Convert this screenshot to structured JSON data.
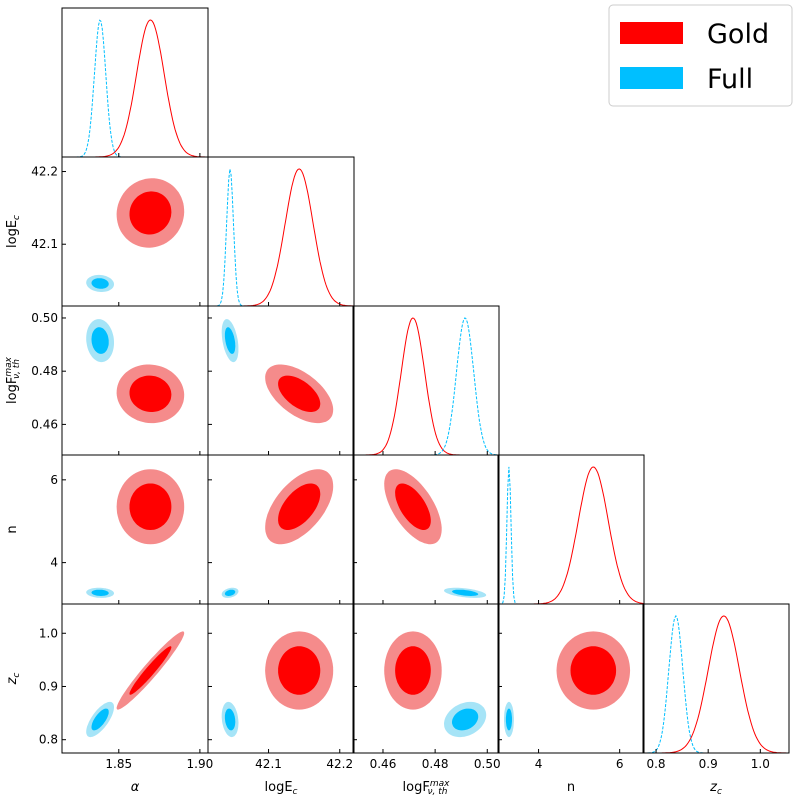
{
  "chart_data": {
    "type": "corner",
    "parameters": [
      {
        "id": "alpha",
        "label": "α",
        "range": [
          1.815,
          1.905
        ],
        "ticks": [
          1.85,
          1.9
        ],
        "tick_labels": [
          "1.85",
          "1.90"
        ]
      },
      {
        "id": "logEc",
        "label": "logE",
        "label_sub": "c",
        "range": [
          42.015,
          42.22
        ],
        "ticks": [
          42.1,
          42.2
        ],
        "tick_labels": [
          "42.1",
          "42.2"
        ]
      },
      {
        "id": "logF",
        "label": "logF",
        "label_sup": "max",
        "label_sub": "ν, th",
        "range": [
          0.4485,
          0.5045
        ],
        "ticks": [
          0.46,
          0.48,
          0.5
        ],
        "tick_labels": [
          "0.46",
          "0.48",
          "0.50"
        ]
      },
      {
        "id": "n",
        "label": "n",
        "range": [
          3.0,
          6.6
        ],
        "ticks": [
          4,
          6
        ],
        "tick_labels": [
          "4",
          "6"
        ]
      },
      {
        "id": "zc",
        "label": "z",
        "label_sub": "c",
        "range": [
          0.775,
          1.055
        ],
        "ticks": [
          0.8,
          0.9,
          1.0
        ],
        "tick_labels": [
          "0.8",
          "0.9",
          "1.0"
        ]
      }
    ],
    "series": [
      {
        "name": "Gold",
        "color_line": "#ff0000",
        "color_inner": "#ff0000",
        "color_outer": "#f58b8b",
        "line_style": "solid",
        "mean": {
          "alpha": 1.8695,
          "logEc": 42.143,
          "logF": 0.4715,
          "n": 5.35,
          "zc": 0.93
        },
        "sigma": {
          "alpha": 0.0085,
          "logEc": 0.0195,
          "logF": 0.0045,
          "n": 0.37,
          "zc": 0.03
        },
        "correlations": [
          {
            "x": "alpha",
            "y": "logEc",
            "rho": 0.05
          },
          {
            "x": "alpha",
            "y": "logF",
            "rho": -0.05
          },
          {
            "x": "logEc",
            "y": "logF",
            "rho": -0.55
          },
          {
            "x": "alpha",
            "y": "n",
            "rho": 0.0
          },
          {
            "x": "logEc",
            "y": "n",
            "rho": 0.55
          },
          {
            "x": "logF",
            "y": "n",
            "rho": -0.6
          },
          {
            "x": "alpha",
            "y": "zc",
            "rho": 0.96
          },
          {
            "x": "logEc",
            "y": "zc",
            "rho": 0.0
          },
          {
            "x": "logF",
            "y": "zc",
            "rho": 0.0
          },
          {
            "x": "n",
            "y": "zc",
            "rho": 0.0
          }
        ]
      },
      {
        "name": "Full",
        "color_line": "#00bfff",
        "color_inner": "#00bfff",
        "color_outer": "#a6e4f7",
        "line_style": "dashed",
        "mean": {
          "alpha": 1.8385,
          "logEc": 42.046,
          "logF": 0.4915,
          "n": 3.27,
          "zc": 0.838
        },
        "sigma": {
          "alpha": 0.0035,
          "logEc": 0.0048,
          "logF": 0.0033,
          "n": 0.05,
          "zc": 0.0135
        },
        "correlations": [
          {
            "x": "alpha",
            "y": "logEc",
            "rho": -0.1
          },
          {
            "x": "alpha",
            "y": "logF",
            "rho": -0.1
          },
          {
            "x": "logEc",
            "y": "logF",
            "rho": -0.4
          },
          {
            "x": "alpha",
            "y": "n",
            "rho": -0.1
          },
          {
            "x": "logEc",
            "y": "n",
            "rho": 0.3
          },
          {
            "x": "logF",
            "y": "n",
            "rho": -0.45
          },
          {
            "x": "alpha",
            "y": "zc",
            "rho": 0.7
          },
          {
            "x": "logEc",
            "y": "zc",
            "rho": -0.2
          },
          {
            "x": "logF",
            "y": "zc",
            "rho": 0.25
          },
          {
            "x": "n",
            "y": "zc",
            "rho": 0.0
          }
        ]
      }
    ],
    "legend": {
      "position": "top-right",
      "entries": [
        "Gold",
        "Full"
      ]
    },
    "grid": false
  }
}
